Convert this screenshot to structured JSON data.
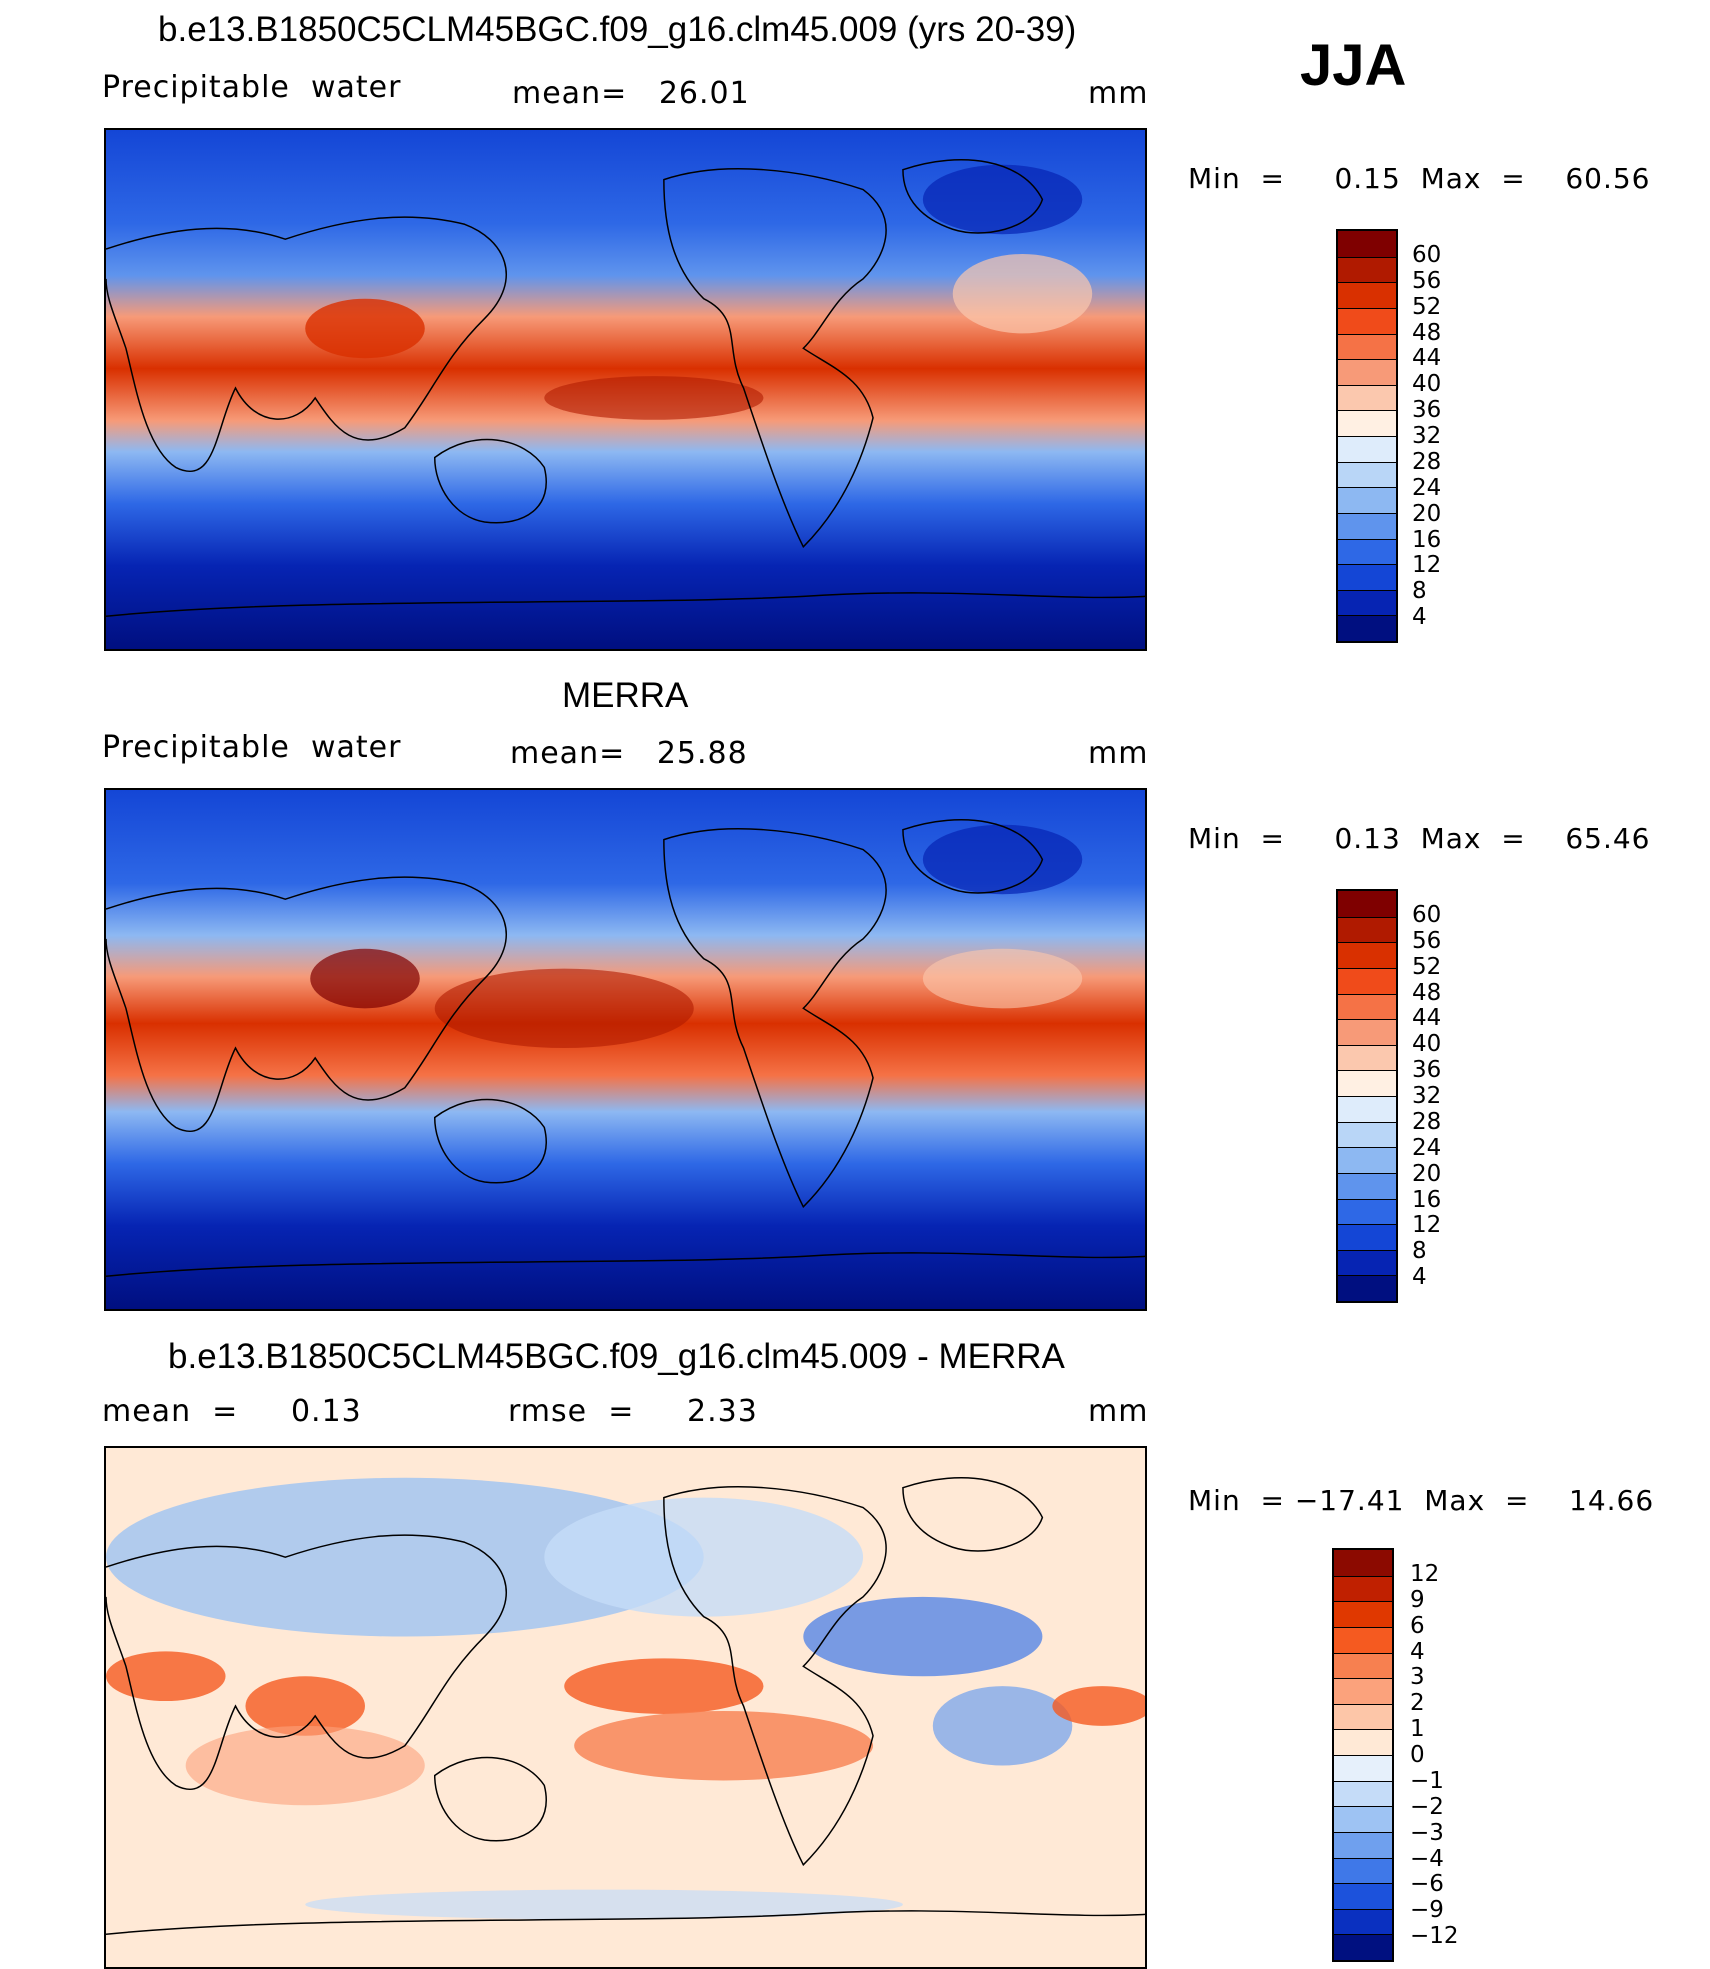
{
  "season": "JJA",
  "units": "mm",
  "panels": [
    {
      "title": "b.e13.B1850C5CLM45BGC.f09_g16.clm45.009 (yrs 20-39)",
      "left_label": "Precipitable  water",
      "center_label": "mean=   26.01",
      "minmax": "Min  =     0.15  Max  =    60.56",
      "colorbar_labels": [
        "60",
        "56",
        "52",
        "48",
        "44",
        "40",
        "36",
        "32",
        "28",
        "24",
        "20",
        "16",
        "12",
        "8",
        "4"
      ],
      "colors": [
        "#7f0000",
        "#b01a00",
        "#d93000",
        "#f04b1a",
        "#f57246",
        "#f79a78",
        "#fbc8ae",
        "#fff0e3",
        "#deecfb",
        "#b9d6f7",
        "#8db8f2",
        "#5f94ed",
        "#2e68e6",
        "#1446d6",
        "#0624b3",
        "#000f80"
      ]
    },
    {
      "title": "MERRA",
      "left_label": "Precipitable  water",
      "center_label": "mean=   25.88",
      "minmax": "Min  =     0.13  Max  =    65.46",
      "colorbar_labels": [
        "60",
        "56",
        "52",
        "48",
        "44",
        "40",
        "36",
        "32",
        "28",
        "24",
        "20",
        "16",
        "12",
        "8",
        "4"
      ],
      "colors": [
        "#7f0000",
        "#b01a00",
        "#d93000",
        "#f04b1a",
        "#f57246",
        "#f79a78",
        "#fbc8ae",
        "#fff0e3",
        "#deecfb",
        "#b9d6f7",
        "#8db8f2",
        "#5f94ed",
        "#2e68e6",
        "#1446d6",
        "#0624b3",
        "#000f80"
      ]
    },
    {
      "title": "b.e13.B1850C5CLM45BGC.f09_g16.clm45.009 - MERRA",
      "left_label": "mean  =     0.13",
      "center_label": "rmse  =     2.33",
      "minmax": "Min  = −17.41  Max  =    14.66",
      "colorbar_labels": [
        "12",
        "9",
        "6",
        "4",
        "3",
        "2",
        "1",
        "0",
        "−1",
        "−2",
        "−3",
        "−4",
        "−6",
        "−9",
        "−12"
      ],
      "colors": [
        "#8c0a00",
        "#c02000",
        "#e03800",
        "#f55a20",
        "#f78050",
        "#fba27c",
        "#fdc6a8",
        "#ffe9d6",
        "#e6f0fb",
        "#c5dcf8",
        "#9ec3f3",
        "#6fa0ee",
        "#3f78e8",
        "#1c52dc",
        "#0a30c0",
        "#001080"
      ]
    }
  ]
}
